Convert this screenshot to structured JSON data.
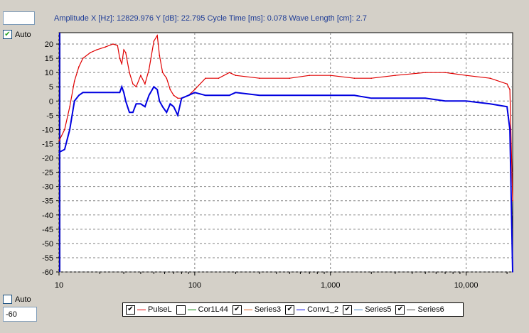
{
  "top_input": "",
  "readout": "Amplitude   X [Hz]: 12829.976   Y [dB]: 22.795   Cycle Time [ms]: 0.078   Wave Length [cm]: 2.7",
  "auto_top": {
    "label": "Auto",
    "checked": true
  },
  "auto_bottom": {
    "label": "Auto",
    "checked": false
  },
  "bottom_input": "-60",
  "legend": [
    {
      "name": "PulseL",
      "checked": true,
      "color": "#e00000"
    },
    {
      "name": "Cor1L44",
      "checked": false,
      "color": "#008000"
    },
    {
      "name": "Series3",
      "checked": true,
      "color": "#e06020"
    },
    {
      "name": "Conv1_2",
      "checked": true,
      "color": "#0000e0"
    },
    {
      "name": "Series5",
      "checked": true,
      "color": "#4080c0"
    },
    {
      "name": "Series6",
      "checked": true,
      "color": "#404040"
    }
  ],
  "chart_data": {
    "type": "line",
    "x_scale": "log",
    "xlim": [
      10,
      22000
    ],
    "ylim": [
      -60,
      24
    ],
    "x_ticks": [
      10,
      100,
      1000,
      10000
    ],
    "x_tick_labels": [
      "10",
      "100",
      "1,000",
      "10,000"
    ],
    "y_ticks": [
      20,
      15,
      10,
      5,
      0,
      -5,
      -10,
      -15,
      -20,
      -25,
      -30,
      -35,
      -40,
      -45,
      -50,
      -55,
      -60
    ],
    "grid": true,
    "series": [
      {
        "name": "PulseL",
        "color": "#e00000",
        "x": [
          10,
          11,
          12,
          13,
          14,
          15,
          17,
          19,
          22,
          25,
          27,
          28,
          29,
          30,
          31,
          33,
          35,
          37,
          40,
          43,
          46,
          50,
          53,
          55,
          58,
          62,
          66,
          70,
          75,
          80,
          90,
          100,
          120,
          150,
          180,
          200,
          300,
          500,
          700,
          1000,
          1500,
          2000,
          3000,
          5000,
          7000,
          10000,
          15000,
          20000,
          21000,
          22000
        ],
        "y": [
          -14,
          -10,
          -2,
          7,
          12,
          15,
          17,
          18,
          19,
          20,
          19.5,
          15,
          13,
          18,
          17,
          10,
          6,
          5,
          9,
          6,
          11,
          21,
          23,
          16,
          10,
          8,
          4,
          2,
          1,
          1,
          2,
          4,
          8,
          8,
          10,
          9,
          8,
          8,
          9,
          9,
          8,
          8,
          9,
          10,
          10,
          9,
          8,
          6,
          4,
          -35
        ]
      },
      {
        "name": "Conv1_2",
        "color": "#0000e0",
        "x": [
          10,
          11,
          12,
          13,
          14,
          15,
          17,
          20,
          25,
          28,
          29,
          30,
          31,
          33,
          35,
          37,
          40,
          43,
          46,
          50,
          53,
          55,
          58,
          62,
          66,
          70,
          75,
          80,
          90,
          100,
          120,
          150,
          180,
          200,
          300,
          500,
          700,
          1000,
          1500,
          2000,
          3000,
          5000,
          7000,
          10000,
          15000,
          20000,
          21000,
          22000
        ],
        "y": [
          -18,
          -17,
          -10,
          0,
          2,
          3,
          3,
          3,
          3,
          3,
          5,
          3,
          0,
          -4,
          -4,
          -1,
          -1,
          -2,
          2,
          5,
          4,
          0,
          -2,
          -4,
          -1,
          -2,
          -5,
          1,
          2,
          3,
          2,
          2,
          2,
          3,
          2,
          2,
          2,
          2,
          2,
          1,
          1,
          1,
          0,
          0,
          -1,
          -2,
          -10,
          -60
        ]
      }
    ]
  }
}
